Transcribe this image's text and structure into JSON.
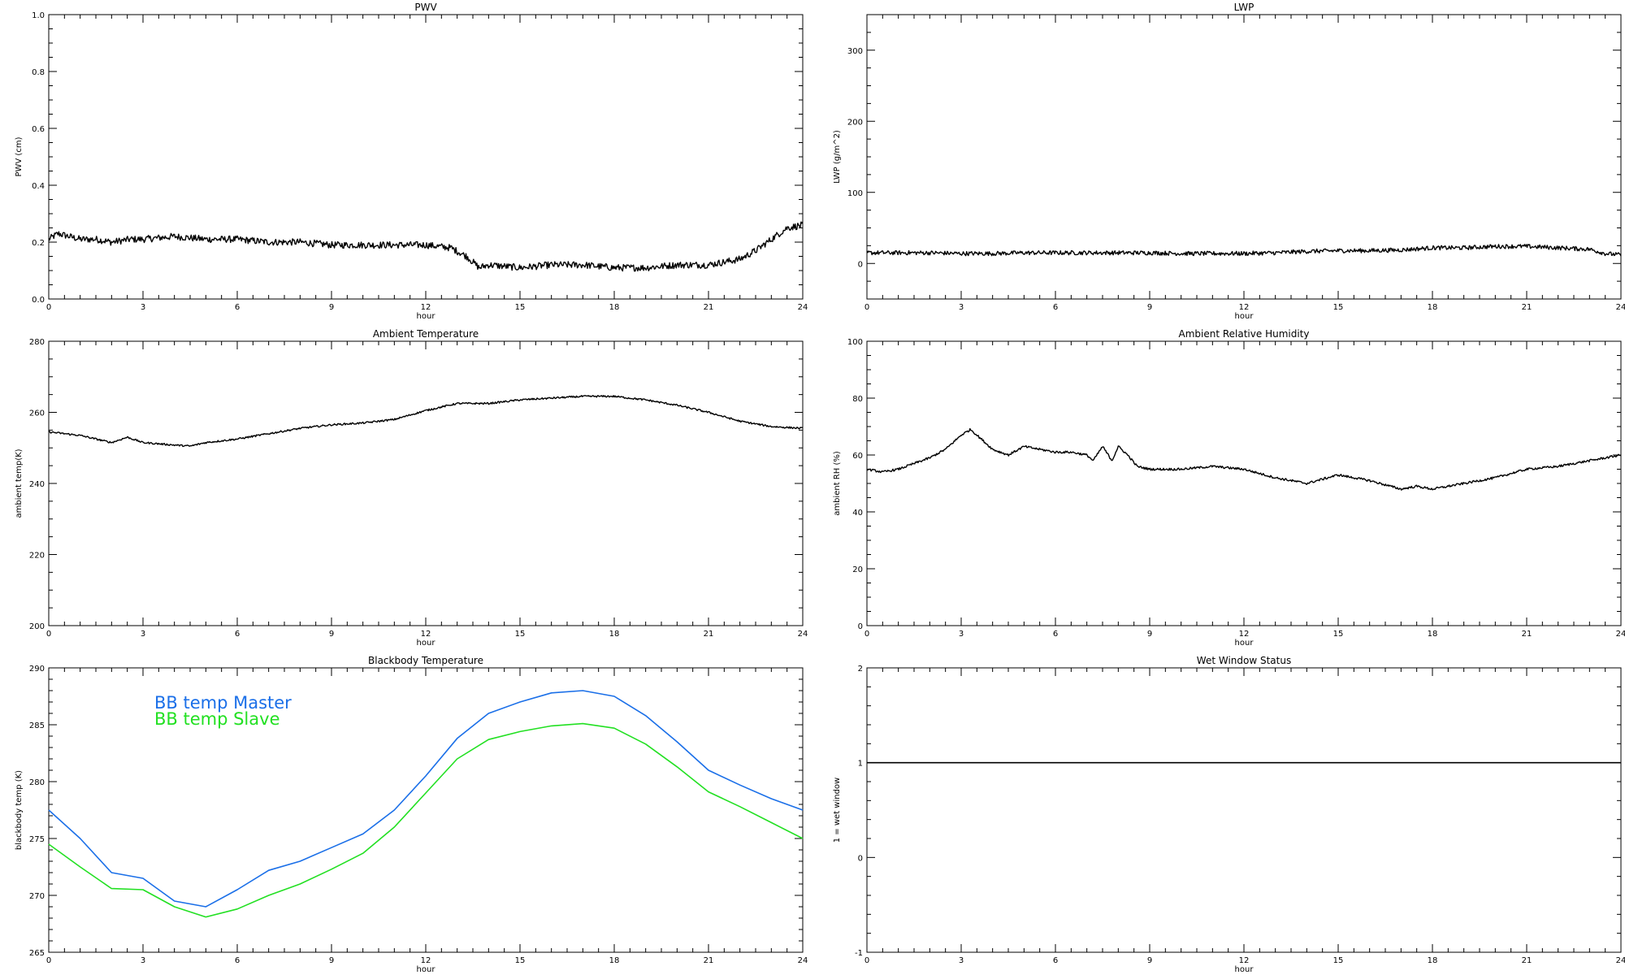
{
  "chart_data": [
    {
      "type": "line",
      "title": "PWV",
      "xlabel": "hour",
      "ylabel": "PWV (cm)",
      "xlim": [
        0,
        24
      ],
      "ylim": [
        0.0,
        1.0
      ],
      "xticks": [
        "0",
        "3",
        "6",
        "9",
        "12",
        "15",
        "18",
        "21",
        "24"
      ],
      "yticks": [
        "0.0",
        "0.2",
        "0.4",
        "0.6",
        "0.8",
        "1.0"
      ],
      "noise": 0.012,
      "series": [
        {
          "color": "#000000",
          "x": [
            0,
            0.3,
            1,
            1.5,
            2,
            2.6,
            3,
            4,
            5,
            6,
            7,
            8,
            9,
            10,
            11,
            12,
            12.8,
            13.3,
            13.7,
            14,
            15,
            16,
            17,
            18,
            19,
            20,
            21,
            22,
            22.5,
            23,
            23.5,
            24
          ],
          "y": [
            0.21,
            0.23,
            0.21,
            0.21,
            0.2,
            0.21,
            0.21,
            0.22,
            0.21,
            0.21,
            0.2,
            0.2,
            0.19,
            0.19,
            0.19,
            0.19,
            0.18,
            0.15,
            0.11,
            0.12,
            0.11,
            0.12,
            0.12,
            0.11,
            0.11,
            0.12,
            0.12,
            0.14,
            0.17,
            0.21,
            0.25,
            0.26
          ]
        }
      ]
    },
    {
      "type": "line",
      "title": "LWP",
      "xlabel": "hour",
      "ylabel": "LWP (g/m^2)",
      "xlim": [
        0,
        24
      ],
      "ylim": [
        -50,
        350
      ],
      "xticks": [
        "0",
        "3",
        "6",
        "9",
        "12",
        "15",
        "18",
        "21",
        "24"
      ],
      "yticks": [
        "0",
        "100",
        "200",
        "300"
      ],
      "noise": 3,
      "series": [
        {
          "color": "#000000",
          "x": [
            0,
            1,
            2,
            3,
            4,
            5,
            6,
            7,
            8,
            9,
            10,
            11,
            12,
            13,
            14,
            15,
            16,
            17,
            18,
            19,
            20,
            21,
            22,
            23,
            23.5,
            24
          ],
          "y": [
            15,
            15,
            15,
            14,
            14,
            15,
            15,
            15,
            15,
            15,
            14,
            14,
            14,
            15,
            17,
            18,
            18,
            19,
            22,
            22,
            24,
            24,
            22,
            20,
            14,
            12
          ]
        }
      ]
    },
    {
      "type": "line",
      "title": "Ambient Temperature",
      "xlabel": "hour",
      "ylabel": "ambient temp(K)",
      "xlim": [
        0,
        24
      ],
      "ylim": [
        200,
        280
      ],
      "xticks": [
        "0",
        "3",
        "6",
        "9",
        "12",
        "15",
        "18",
        "21",
        "24"
      ],
      "yticks": [
        "200",
        "220",
        "240",
        "260",
        "280"
      ],
      "noise": 0.25,
      "series": [
        {
          "color": "#000000",
          "x": [
            0,
            1,
            2,
            2.5,
            3,
            4,
            4.5,
            5,
            6,
            7,
            8,
            9,
            10,
            11,
            12,
            13,
            14,
            15,
            16,
            17,
            18,
            19,
            20,
            21,
            22,
            23,
            24
          ],
          "y": [
            254.5,
            253.5,
            251.5,
            253,
            251.5,
            250.8,
            250.5,
            251.5,
            252.5,
            254,
            255.5,
            256.5,
            257,
            258,
            260.5,
            262.5,
            262.5,
            263.5,
            264,
            264.5,
            264.5,
            263.5,
            262,
            260,
            257.5,
            256,
            255.5
          ]
        }
      ]
    },
    {
      "type": "line",
      "title": "Ambient Relative Humidity",
      "xlabel": "hour",
      "ylabel": "ambient RH (%)",
      "xlim": [
        0,
        24
      ],
      "ylim": [
        0,
        100
      ],
      "xticks": [
        "0",
        "3",
        "6",
        "9",
        "12",
        "15",
        "18",
        "21",
        "24"
      ],
      "yticks": [
        "0",
        "20",
        "40",
        "60",
        "80",
        "100"
      ],
      "noise": 0.4,
      "series": [
        {
          "color": "#000000",
          "x": [
            0,
            0.5,
            1,
            1.5,
            2,
            2.5,
            3,
            3.3,
            3.6,
            4,
            4.5,
            5,
            5.5,
            6,
            6.5,
            7,
            7.2,
            7.5,
            7.8,
            8,
            8.3,
            8.6,
            9,
            10,
            11,
            12,
            13,
            14,
            15,
            16,
            17,
            17.5,
            18,
            19,
            20,
            21,
            22,
            23,
            23.5,
            24
          ],
          "y": [
            55,
            54,
            55,
            57,
            59,
            62,
            67,
            69,
            66,
            62,
            60,
            63,
            62,
            61,
            61,
            60,
            58,
            63,
            58,
            63,
            60,
            56,
            55,
            55,
            56,
            55,
            52,
            50,
            53,
            51,
            48,
            49,
            48,
            50,
            52,
            55,
            56,
            58,
            59,
            60
          ]
        }
      ]
    },
    {
      "type": "line",
      "title": "Blackbody Temperature",
      "xlabel": "hour",
      "ylabel": "blackbody temp (K)",
      "xlim": [
        0,
        24
      ],
      "ylim": [
        265,
        290
      ],
      "xticks": [
        "0",
        "3",
        "6",
        "9",
        "12",
        "15",
        "18",
        "21",
        "24"
      ],
      "yticks": [
        "265",
        "270",
        "275",
        "280",
        "285",
        "290"
      ],
      "noise": 0,
      "legend": [
        "BB temp Master",
        "BB temp Slave"
      ],
      "series": [
        {
          "name": "BB temp Master",
          "color": "#1a6fe8",
          "x": [
            0,
            1,
            2,
            3,
            4,
            5,
            6,
            7,
            8,
            9,
            10,
            11,
            12,
            13,
            14,
            15,
            16,
            17,
            18,
            19,
            20,
            21,
            22,
            23,
            24
          ],
          "y": [
            277.5,
            275,
            272,
            271.5,
            269.5,
            269,
            270.5,
            272.2,
            273,
            274.2,
            275.4,
            277.5,
            280.5,
            283.8,
            286,
            287,
            287.8,
            288,
            287.5,
            285.8,
            283.5,
            281,
            279.7,
            278.5,
            277.5
          ]
        },
        {
          "name": "BB temp Slave",
          "color": "#22e022",
          "x": [
            0,
            1,
            2,
            3,
            4,
            5,
            6,
            7,
            8,
            9,
            10,
            11,
            12,
            13,
            14,
            15,
            16,
            17,
            18,
            19,
            20,
            21,
            22,
            23,
            24
          ],
          "y": [
            274.5,
            272.5,
            270.6,
            270.5,
            269,
            268.1,
            268.8,
            270,
            271,
            272.3,
            273.7,
            276,
            279,
            282,
            283.7,
            284.4,
            284.9,
            285.1,
            284.7,
            283.3,
            281.3,
            279.1,
            277.8,
            276.4,
            275
          ]
        }
      ]
    },
    {
      "type": "line",
      "title": "Wet Window Status",
      "xlabel": "hour",
      "ylabel": "1 = wet window",
      "xlim": [
        0,
        24
      ],
      "ylim": [
        -1,
        2
      ],
      "xticks": [
        "0",
        "3",
        "6",
        "9",
        "12",
        "15",
        "18",
        "21",
        "24"
      ],
      "yticks": [
        "-1",
        "0",
        "1",
        "2"
      ],
      "noise": 0,
      "series": [
        {
          "color": "#000000",
          "x": [
            0,
            24
          ],
          "y": [
            1,
            1
          ]
        }
      ]
    }
  ]
}
